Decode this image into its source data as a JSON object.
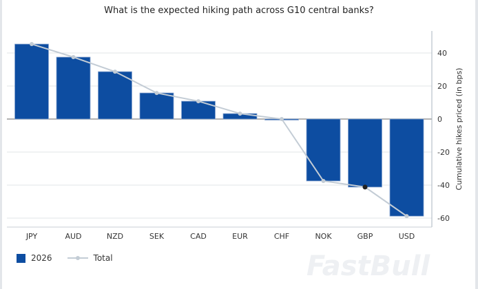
{
  "chart_data": {
    "type": "bar",
    "title": "What is the expected hiking path across G10 central banks?",
    "ylabel": "Cumulative hikes priced (in bps)",
    "xlabel": "",
    "categories": [
      "JPY",
      "AUD",
      "NZD",
      "SEK",
      "CAD",
      "EUR",
      "CHF",
      "NOK",
      "GBP",
      "USD"
    ],
    "series": [
      {
        "name": "2026",
        "type": "bar",
        "color": "#0d4da1",
        "values": [
          45.4,
          37.5,
          28.7,
          15.8,
          10.8,
          3.3,
          -0.5,
          -37.5,
          -41.2,
          -58.8
        ]
      },
      {
        "name": "Total",
        "type": "line",
        "color": "#c3ccd5",
        "values": [
          45.4,
          37.5,
          28.7,
          15.8,
          10.8,
          3.3,
          0,
          -37.5,
          -41.2,
          -58.8
        ]
      }
    ],
    "ylim": [
      -66,
      52
    ],
    "yticks": [
      40,
      20,
      0,
      -20,
      -40,
      -60
    ],
    "grid": true,
    "y_axis_side": "right",
    "legend_position": "bottom-left",
    "highlighted_point": "GBP"
  },
  "watermark": "FastBull"
}
